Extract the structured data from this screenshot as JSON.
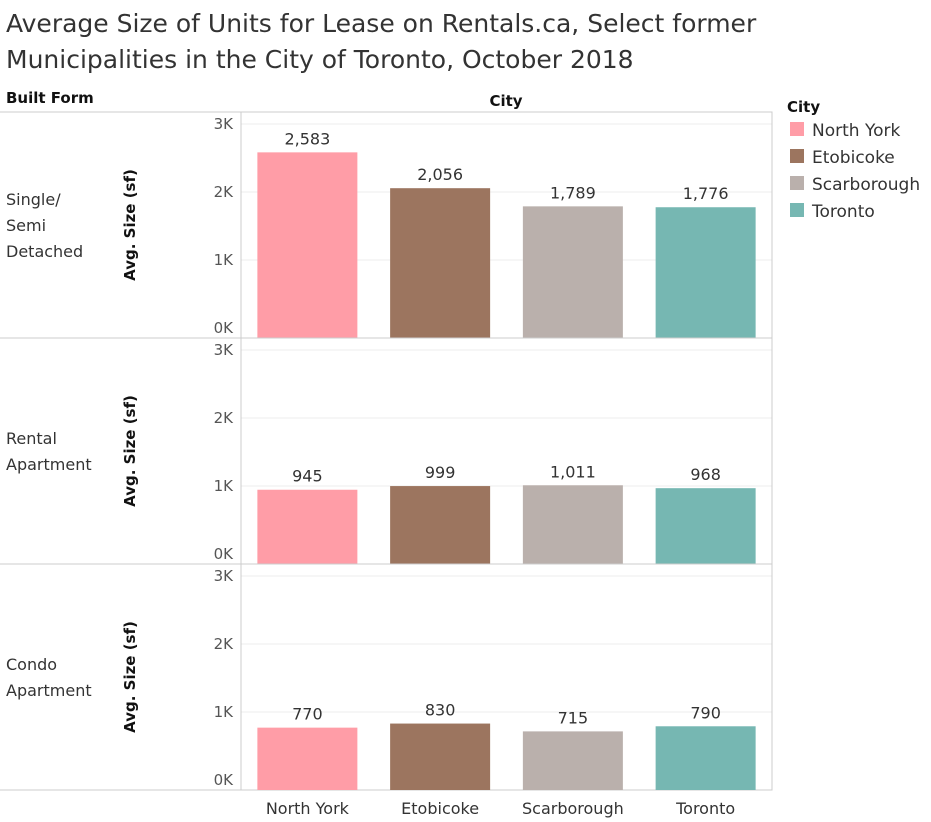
{
  "title_lines": [
    "Average Size of Units for Lease on Rentals.ca, Select former",
    "Municipalities in the City of Toronto, October 2018"
  ],
  "chart_data": {
    "type": "bar",
    "row_header": "Built Form",
    "column_header": "City",
    "ylabel": "Avg. Size (sf)",
    "ylim": [
      0,
      3000
    ],
    "yticks": [
      0,
      1000,
      2000,
      3000
    ],
    "ytick_labels": [
      "0K",
      "1K",
      "2K",
      "3K"
    ],
    "categories": [
      "North York",
      "Etobicoke",
      "Scarborough",
      "Toronto"
    ],
    "colors": [
      "#ff9da7",
      "#9c755f",
      "#bab0ac",
      "#76b7b2"
    ],
    "grid": true,
    "legend": {
      "title": "City",
      "placement": "top-right",
      "items": [
        "North York",
        "Etobicoke",
        "Scarborough",
        "Toronto"
      ]
    },
    "panels": [
      {
        "row_label": [
          "Single/",
          "Semi",
          "Detached"
        ],
        "values": [
          2583,
          2056,
          1789,
          1776
        ],
        "labels": [
          "2,583",
          "2,056",
          "1,789",
          "1,776"
        ]
      },
      {
        "row_label": [
          "Rental",
          "Apartment"
        ],
        "values": [
          945,
          999,
          1011,
          968
        ],
        "labels": [
          "945",
          "999",
          "1,011",
          "968"
        ]
      },
      {
        "row_label": [
          "Condo",
          "Apartment"
        ],
        "values": [
          770,
          830,
          715,
          790
        ],
        "labels": [
          "770",
          "830",
          "715",
          "790"
        ]
      }
    ]
  }
}
